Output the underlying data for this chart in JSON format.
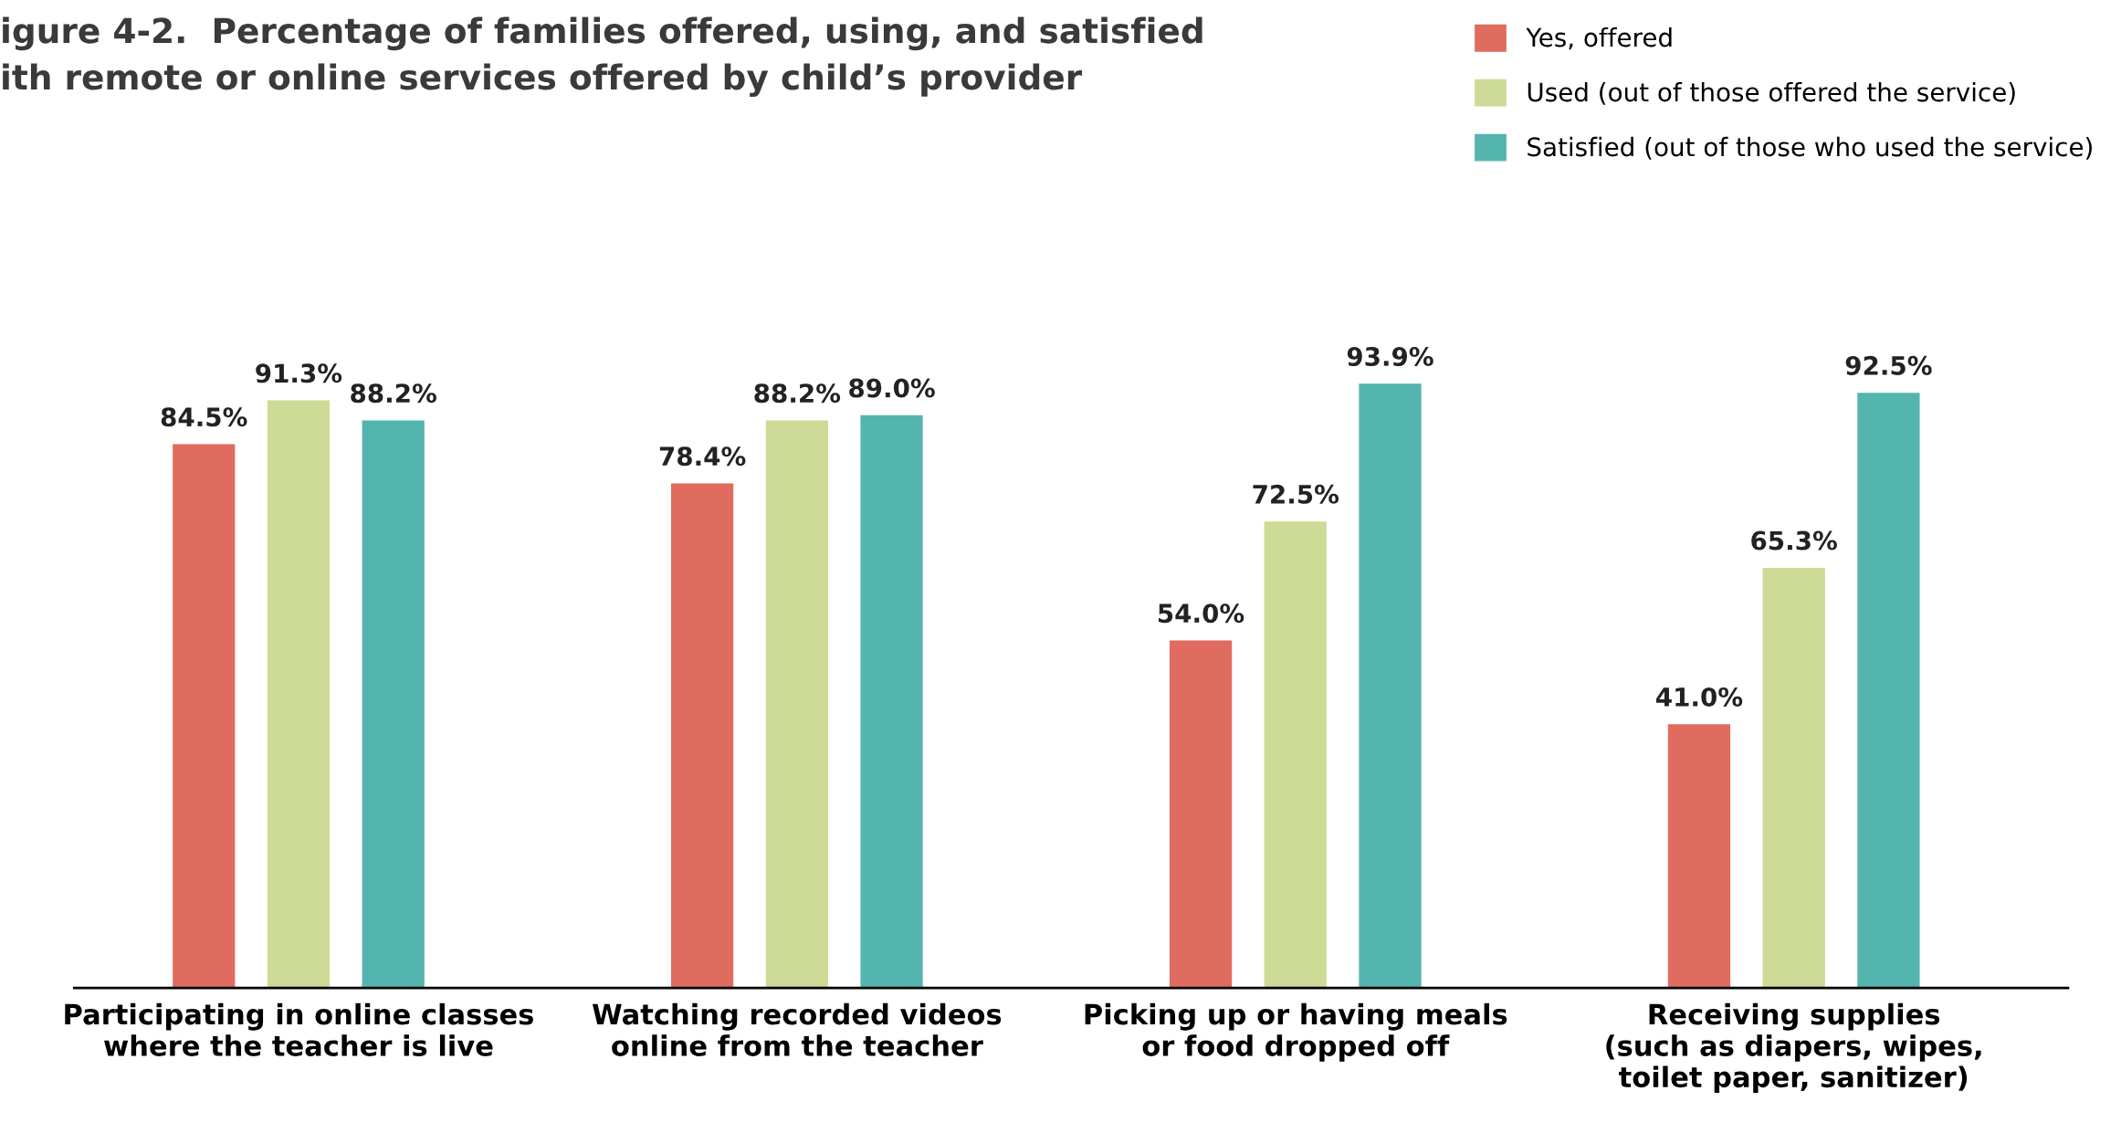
{
  "chart_data": {
    "type": "bar",
    "title": "igure 4-2.  Percentage of families offered, using, and satisfied\nith remote or online services offered by child’s provider",
    "categories": [
      "Participating in online classes\nwhere the teacher is live",
      "Watching recorded videos\nonline from the teacher",
      "Picking up or having meals\nor food dropped off",
      "Receiving supplies\n(such as diapers, wipes,\ntoilet paper, sanitizer)"
    ],
    "series": [
      {
        "name": "Yes, offered",
        "color": "#e06b5f",
        "values": [
          84.5,
          78.4,
          54.0,
          41.0
        ],
        "value_labels": [
          "84.5%",
          "78.4%",
          "54.0%",
          "41.0%"
        ]
      },
      {
        "name": "Used (out of those offered the service)",
        "color": "#cddb96",
        "values": [
          91.3,
          88.2,
          72.5,
          65.3
        ],
        "value_labels": [
          "91.3%",
          "88.2%",
          "72.5%",
          "65.3%"
        ]
      },
      {
        "name": "Satisfied (out of those who used the service)",
        "color": "#54b4ae",
        "values": [
          88.2,
          89.0,
          93.9,
          92.5
        ],
        "value_labels": [
          "88.2%",
          "89.0%",
          "93.9%",
          "92.5%"
        ]
      }
    ],
    "legend": "top right",
    "grid": false
  }
}
